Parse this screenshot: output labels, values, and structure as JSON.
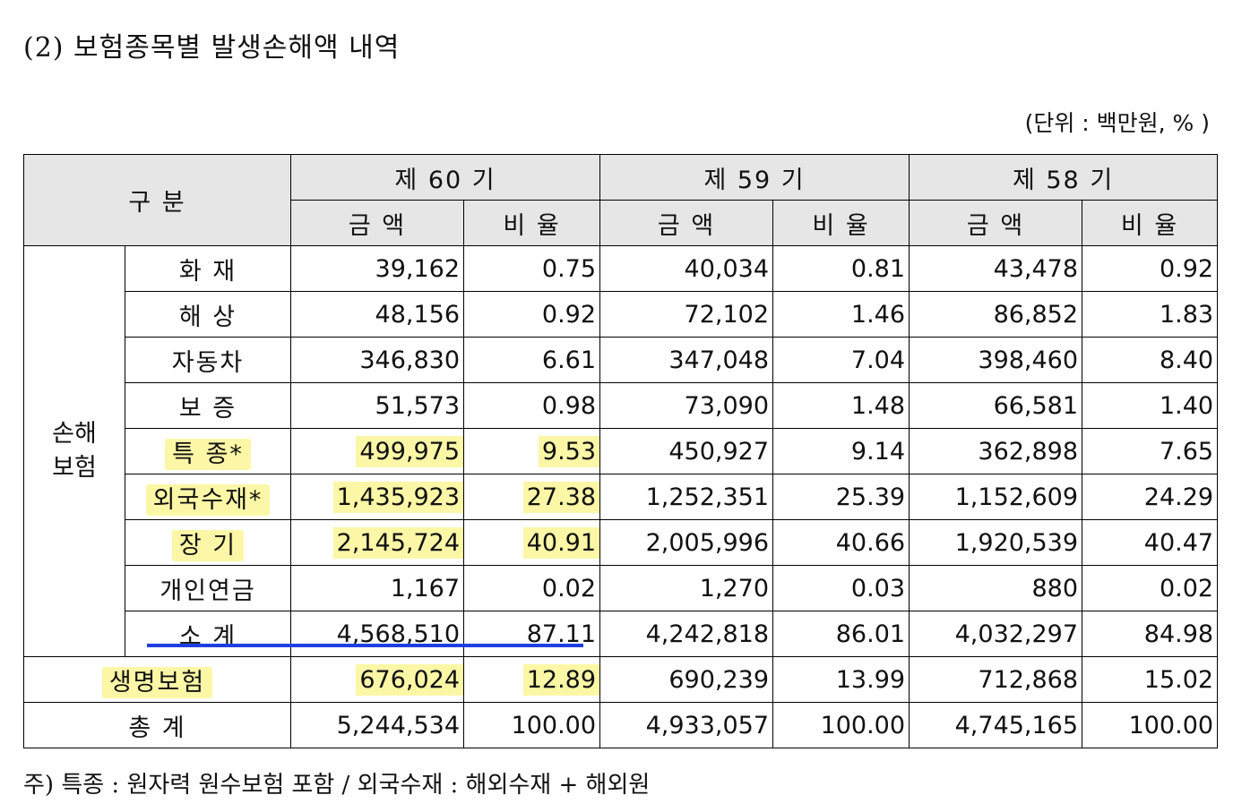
{
  "title": "(2) 보험종목별 발생손해액 내역",
  "unit": "(단위 : 백만원, % )",
  "header": {
    "category": "구 분",
    "periods": [
      "제 60 기",
      "제 59 기",
      "제 58 기"
    ],
    "amount": "금 액",
    "ratio": "비 율"
  },
  "group_label": "손해\n보험",
  "rows": [
    {
      "label": "화 재",
      "v": [
        "39,162",
        "0.75",
        "40,034",
        "0.81",
        "43,478",
        "0.92"
      ]
    },
    {
      "label": "해 상",
      "v": [
        "48,156",
        "0.92",
        "72,102",
        "1.46",
        "86,852",
        "1.83"
      ]
    },
    {
      "label": "자동차",
      "v": [
        "346,830",
        "6.61",
        "347,048",
        "7.04",
        "398,460",
        "8.40"
      ]
    },
    {
      "label": "보 증",
      "v": [
        "51,573",
        "0.98",
        "73,090",
        "1.48",
        "66,581",
        "1.40"
      ]
    },
    {
      "label": "특 종*",
      "v": [
        "499,975",
        "9.53",
        "450,927",
        "9.14",
        "362,898",
        "7.65"
      ]
    },
    {
      "label": "외국수재*",
      "v": [
        "1,435,923",
        "27.38",
        "1,252,351",
        "25.39",
        "1,152,609",
        "24.29"
      ]
    },
    {
      "label": "장 기",
      "v": [
        "2,145,724",
        "40.91",
        "2,005,996",
        "40.66",
        "1,920,539",
        "40.47"
      ]
    },
    {
      "label": "개인연금",
      "v": [
        "1,167",
        "0.02",
        "1,270",
        "0.03",
        "880",
        "0.02"
      ]
    },
    {
      "label": "소 계",
      "v": [
        "4,568,510",
        "87.11",
        "4,242,818",
        "86.01",
        "4,032,297",
        "84.98"
      ]
    }
  ],
  "life": {
    "label": "생명보험",
    "v": [
      "676,024",
      "12.89",
      "690,239",
      "13.99",
      "712,868",
      "15.02"
    ]
  },
  "total": {
    "label": "총 계",
    "v": [
      "5,244,534",
      "100.00",
      "4,933,057",
      "100.00",
      "4,745,165",
      "100.00"
    ]
  },
  "note": "주) 특종 : 원자력 원수보험 포함 / 외국수재 : 해외수재 + 해외원",
  "colors": {
    "highlight": "#fbf7a6",
    "underline": "#1f3fe0",
    "header_bg": "#e6e6e6"
  }
}
